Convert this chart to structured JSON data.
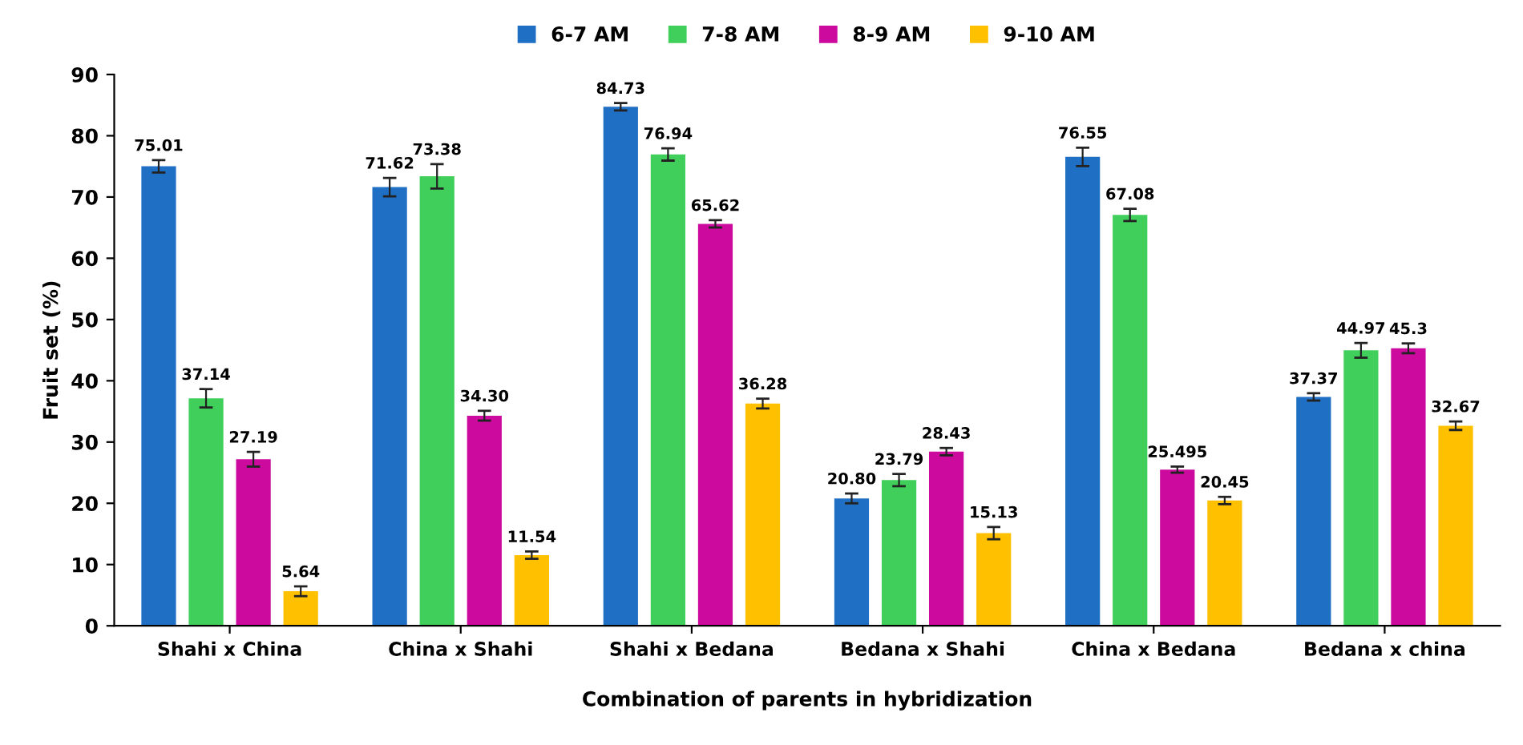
{
  "chart_data": {
    "type": "bar",
    "xlabel": "Combination of parents in hybridization",
    "ylabel": "Fruit set (%)",
    "categories": [
      "Shahi x China",
      "China x Shahi",
      "Shahi x Bedana",
      "Bedana x Shahi",
      "China x Bedana",
      "Bedana x china"
    ],
    "series": [
      {
        "name": "6-7 AM",
        "color": "#1f6fc4",
        "values": [
          75.01,
          71.62,
          84.73,
          20.8,
          76.55,
          37.37
        ],
        "errors": [
          1,
          1.5,
          0.6,
          0.8,
          1.5,
          0.6
        ],
        "value_labels": [
          "75.01",
          "71.62",
          "84.73",
          "20.80",
          "76.55",
          "37.37"
        ]
      },
      {
        "name": "7-8 AM",
        "color": "#3fcf5a",
        "values": [
          37.14,
          73.38,
          76.94,
          23.79,
          67.08,
          44.97
        ],
        "errors": [
          1.5,
          2,
          1,
          1,
          1,
          1.2
        ],
        "value_labels": [
          "37.14",
          "73.38",
          "76.94",
          "23.79",
          "67.08",
          "44.97"
        ]
      },
      {
        "name": "8-9 AM",
        "color": "#cc0a9e",
        "values": [
          27.19,
          34.3,
          65.62,
          28.43,
          25.495,
          45.3
        ],
        "errors": [
          1.2,
          0.8,
          0.6,
          0.6,
          0.5,
          0.8
        ],
        "value_labels": [
          "27.19",
          "34.30",
          "65.62",
          "28.43",
          "25.495",
          "45.3"
        ]
      },
      {
        "name": "9-10 AM",
        "color": "#ffc000",
        "values": [
          5.64,
          11.54,
          36.28,
          15.13,
          20.45,
          32.67
        ],
        "errors": [
          0.8,
          0.6,
          0.8,
          1,
          0.6,
          0.7
        ],
        "value_labels": [
          "5.64",
          "11.54",
          "36.28",
          "15.13",
          "20.45",
          "32.67"
        ]
      }
    ],
    "ylim": [
      0,
      90
    ],
    "yticks": [
      0,
      10,
      20,
      30,
      40,
      50,
      60,
      70,
      80,
      90
    ],
    "legend": "top",
    "grid": false
  }
}
